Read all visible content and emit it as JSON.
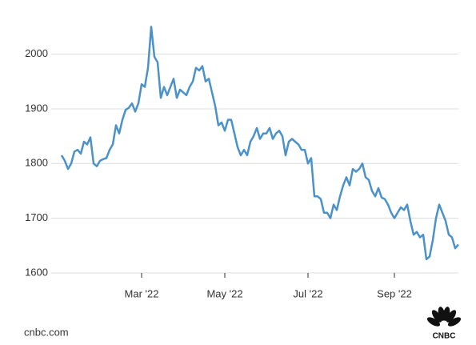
{
  "chart_data": {
    "type": "line",
    "categories": [
      null,
      null,
      null,
      null,
      null,
      null,
      null,
      null,
      null,
      null,
      null,
      null,
      null,
      null,
      null,
      null,
      null,
      null,
      null,
      null,
      null,
      null,
      null,
      null,
      null,
      "Mar '22",
      null,
      null,
      null,
      null,
      null,
      null,
      null,
      null,
      null,
      null,
      null,
      null,
      null,
      null,
      null,
      null,
      null,
      null,
      null,
      null,
      null,
      null,
      null,
      null,
      null,
      "May '22",
      null,
      null,
      null,
      null,
      null,
      null,
      null,
      null,
      null,
      null,
      null,
      null,
      null,
      null,
      null,
      null,
      null,
      null,
      null,
      null,
      null,
      null,
      null,
      null,
      null,
      "Jul '22",
      null,
      null,
      null,
      null,
      null,
      null,
      null,
      null,
      null,
      null,
      null,
      null,
      null,
      null,
      null,
      null,
      null,
      null,
      null,
      null,
      null,
      null,
      null,
      null,
      null,
      null,
      "Sep '22",
      null,
      null,
      null,
      null,
      null,
      null,
      null,
      null,
      null,
      null,
      null,
      null,
      null,
      null,
      null,
      null,
      null,
      null,
      null,
      null
    ],
    "values": [
      1815,
      1805,
      1790,
      1800,
      1822,
      1825,
      1818,
      1840,
      1835,
      1848,
      1800,
      1795,
      1805,
      1808,
      1810,
      1825,
      1835,
      1870,
      1855,
      1880,
      1898,
      1902,
      1910,
      1895,
      1910,
      1945,
      1940,
      1975,
      2050,
      1995,
      1985,
      1920,
      1940,
      1925,
      1940,
      1955,
      1920,
      1935,
      1930,
      1925,
      1940,
      1950,
      1975,
      1970,
      1978,
      1950,
      1955,
      1930,
      1905,
      1870,
      1875,
      1860,
      1880,
      1880,
      1855,
      1830,
      1815,
      1825,
      1815,
      1840,
      1850,
      1865,
      1845,
      1855,
      1855,
      1865,
      1845,
      1855,
      1860,
      1850,
      1815,
      1840,
      1845,
      1840,
      1835,
      1825,
      1825,
      1800,
      1810,
      1740,
      1740,
      1735,
      1710,
      1710,
      1700,
      1725,
      1715,
      1740,
      1760,
      1775,
      1760,
      1790,
      1785,
      1790,
      1800,
      1775,
      1770,
      1750,
      1740,
      1755,
      1738,
      1735,
      1725,
      1710,
      1700,
      1710,
      1720,
      1715,
      1725,
      1695,
      1670,
      1675,
      1665,
      1670,
      1625,
      1630,
      1660,
      1700,
      1725,
      1710,
      1695,
      1670,
      1665,
      1645,
      1652
    ],
    "color": "#4a92c9",
    "ylim": [
      1600,
      2055
    ],
    "yticks": [
      1600,
      1700,
      1800,
      1900,
      2000
    ],
    "grid": true
  },
  "source": "cnbc.com",
  "logo_text": "CNBC"
}
